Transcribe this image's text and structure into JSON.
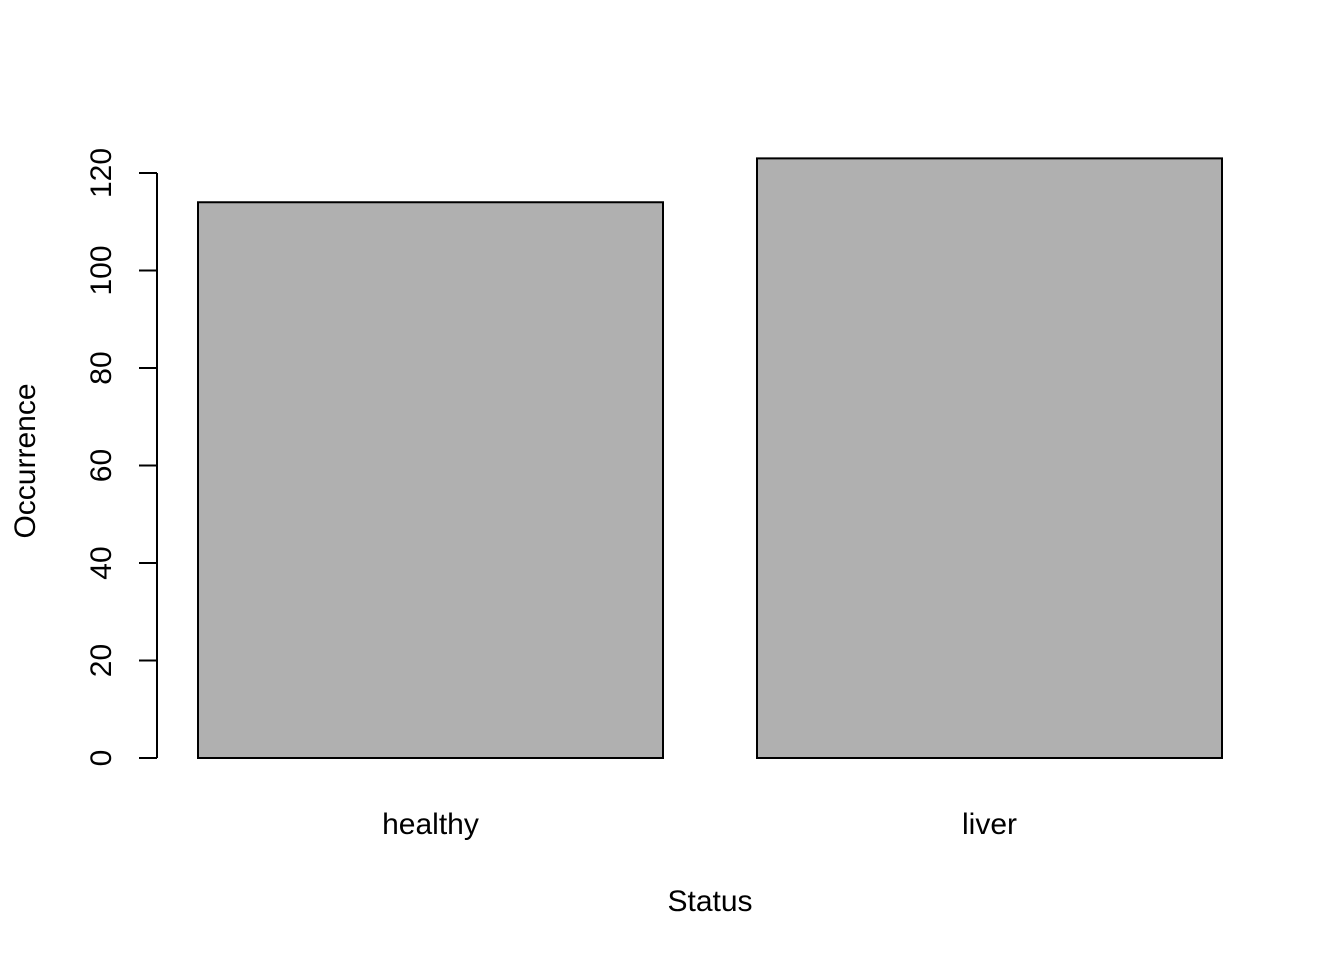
{
  "chart_data": {
    "type": "bar",
    "title": "",
    "xlabel": "Status",
    "ylabel": "Occurrence",
    "categories": [
      "healthy",
      "liver"
    ],
    "values": [
      114,
      123
    ],
    "ylim": [
      0,
      120
    ],
    "yticks": [
      "0",
      "20",
      "40",
      "60",
      "80",
      "100",
      "120"
    ],
    "grid": false,
    "legend": "none",
    "bar_color": "#b0b0b0",
    "border_color": "#000000",
    "background": "#ffffff"
  }
}
